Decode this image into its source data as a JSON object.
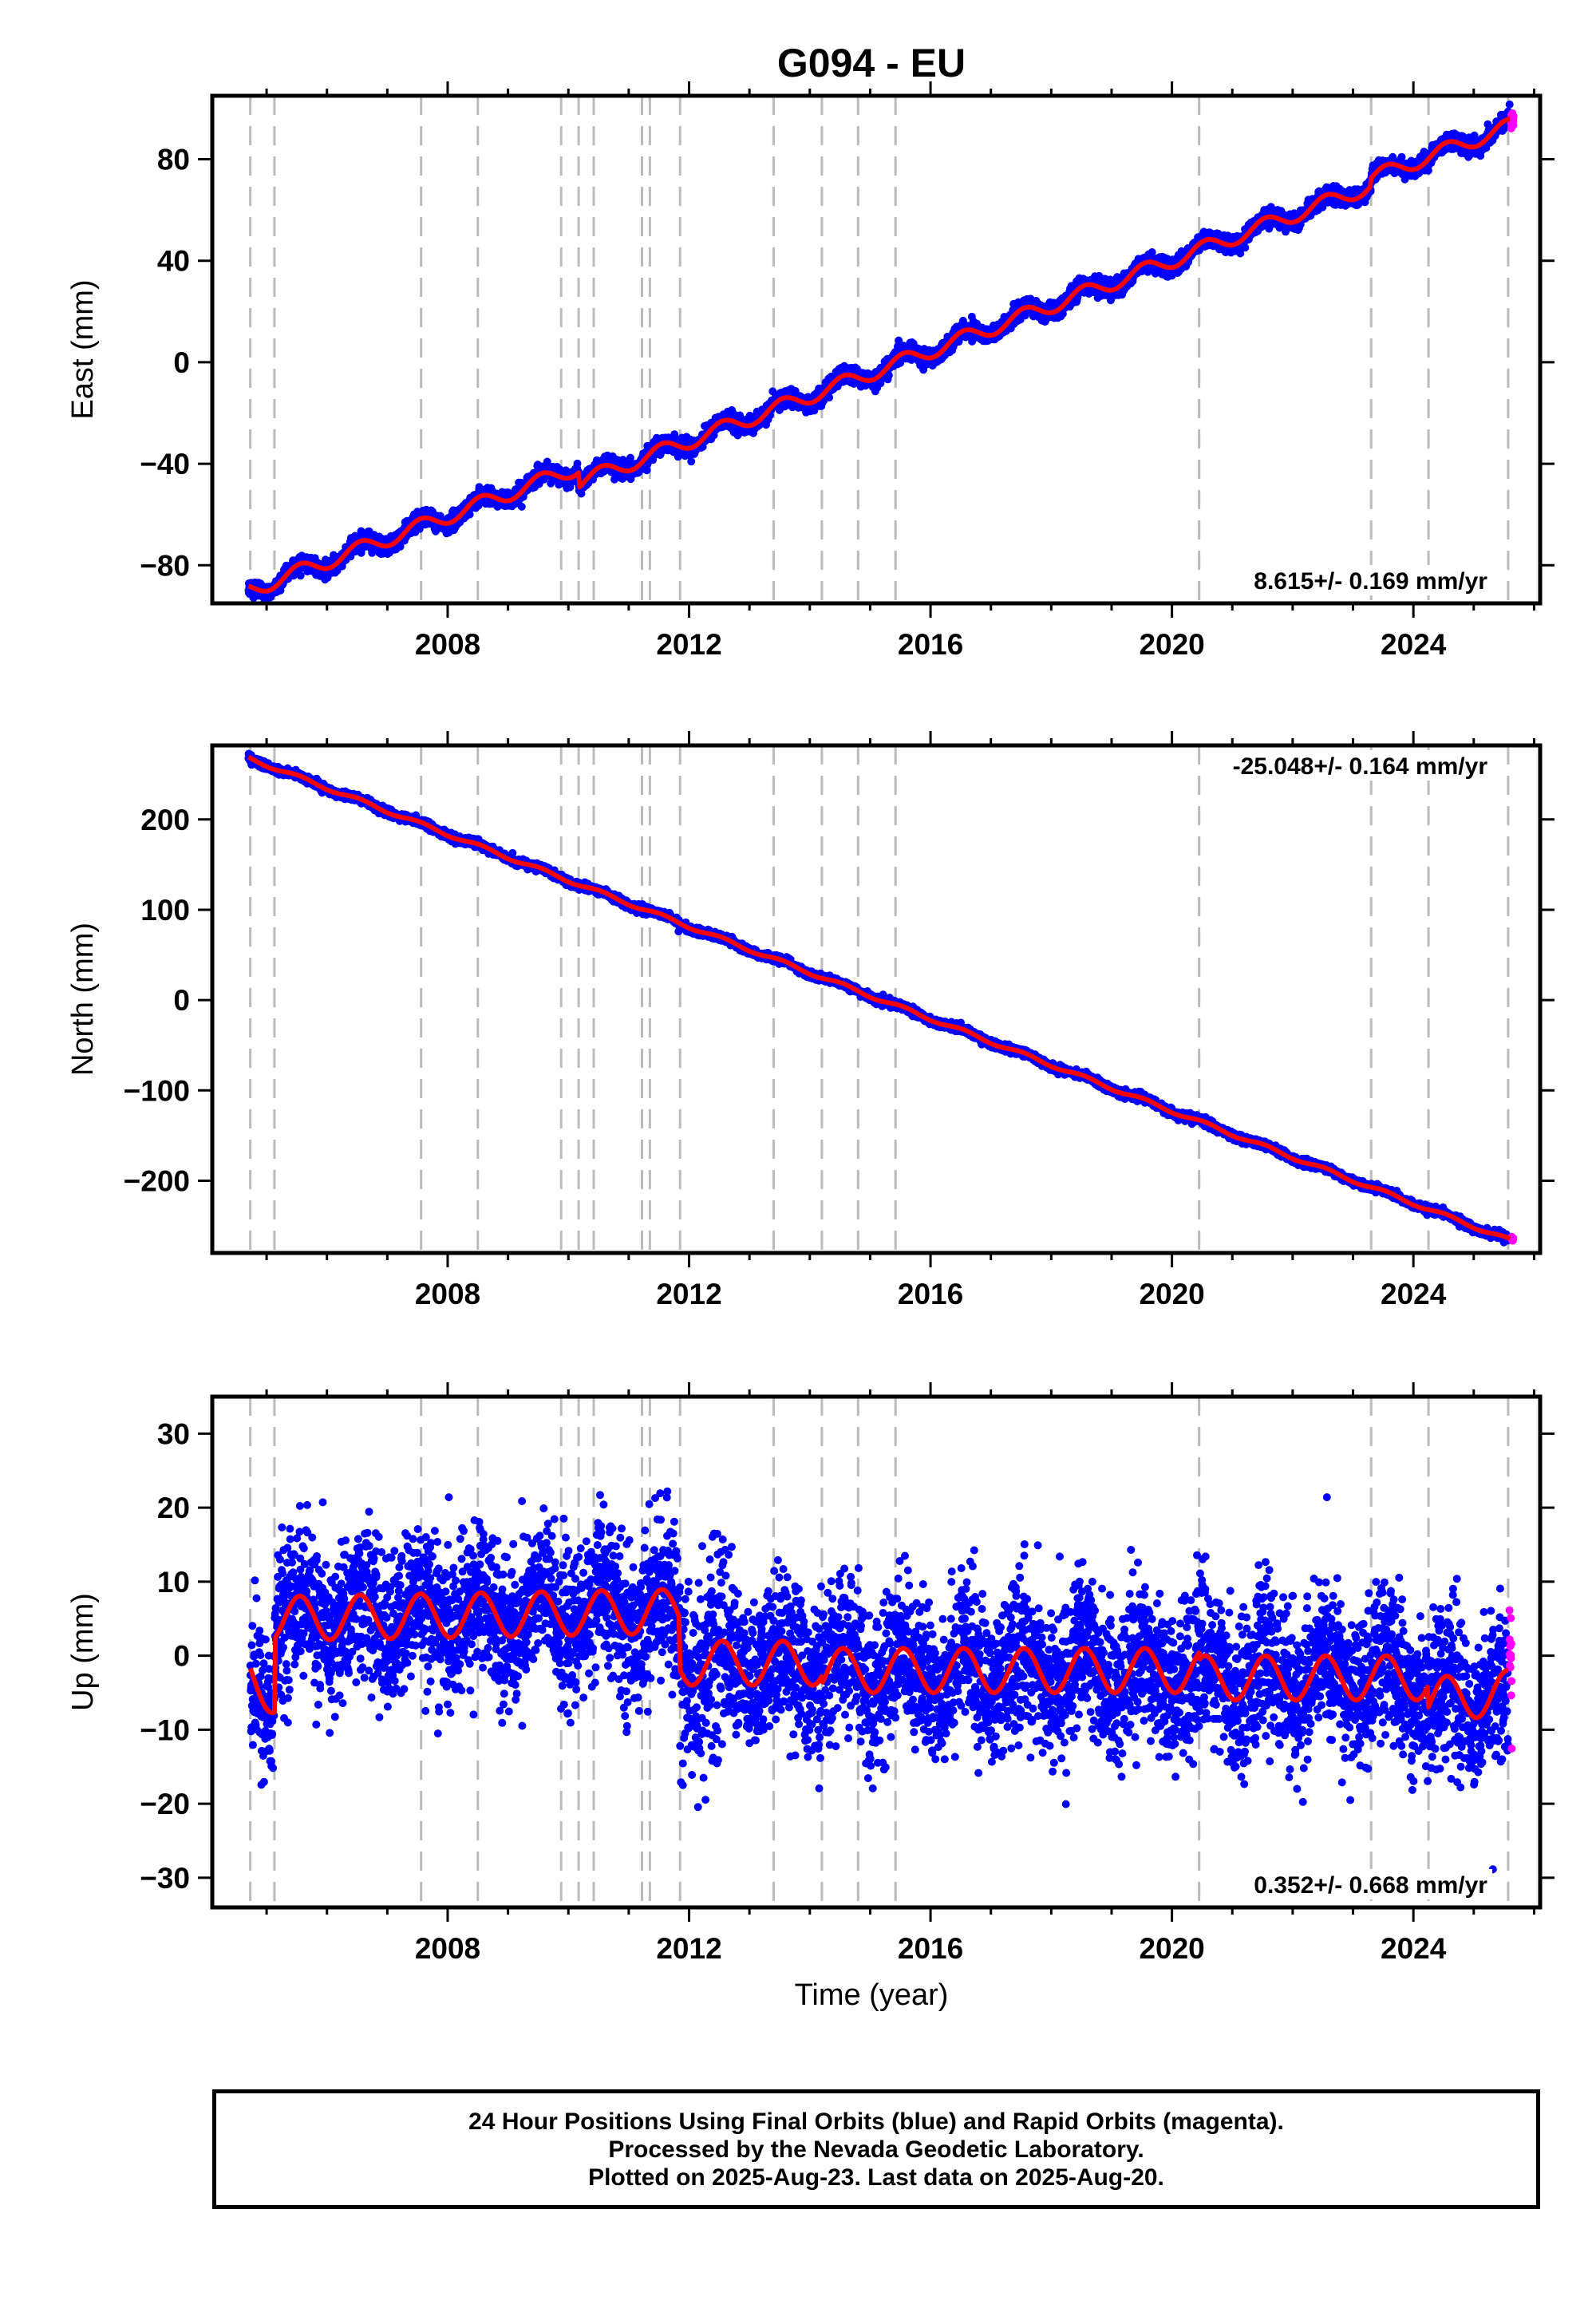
{
  "title": "G094 - EU",
  "xlabel": "Time (year)",
  "xticks": [
    2008,
    2012,
    2016,
    2020,
    2024
  ],
  "steps": [
    2004.73,
    2005.13,
    2007.56,
    2008.5,
    2009.88,
    2010.17,
    2010.42,
    2011.22,
    2011.35,
    2011.85,
    2013.4,
    2014.2,
    2014.8,
    2015.42,
    2020.45,
    2023.3,
    2024.25,
    2025.57
  ],
  "colors": {
    "final": "#0000ff",
    "rapid": "#ff00ff",
    "model": "#ff0000",
    "steps": "#bbbbbb"
  },
  "footer": [
    "24 Hour Positions Using Final Orbits (blue) and Rapid Orbits (magenta).",
    "Processed by the Nevada Geodetic Laboratory.",
    "Plotted on 2025-Aug-23. Last data on 2025-Aug-20."
  ],
  "chart_data": [
    {
      "type": "scatter",
      "name": "East",
      "ylabel": "East (mm)",
      "xlim": [
        2004.1,
        2026.1
      ],
      "ylim": [
        -95,
        105
      ],
      "yticks": [
        -80,
        -40,
        0,
        40,
        80
      ],
      "rate_label": "8.615+/- 0.169 mm/yr",
      "rate_position": "bottom-right",
      "trend": {
        "start": [
          2004.7,
          -90
        ],
        "end": [
          2025.6,
          96
        ]
      },
      "seasonal_amplitude": 3,
      "scatter_sd": 1.6,
      "offsets": [
        {
          "year": 2010.17,
          "value": -6
        },
        {
          "year": 2023.3,
          "value": 3
        }
      ],
      "x": [
        2004.7,
        2006,
        2008,
        2010,
        2012,
        2014,
        2016,
        2018,
        2020,
        2022,
        2024,
        2025.6
      ],
      "y": [
        -90,
        -81,
        -61,
        -45,
        -31,
        -10,
        8,
        25,
        43,
        62,
        87,
        96
      ]
    },
    {
      "type": "scatter",
      "name": "North",
      "ylabel": "North (mm)",
      "xlim": [
        2004.1,
        2026.1
      ],
      "ylim": [
        -280,
        282
      ],
      "yticks": [
        -200,
        -100,
        0,
        100,
        200
      ],
      "rate_label": "-25.048+/- 0.164 mm/yr",
      "rate_position": "top-right",
      "trend": {
        "start": [
          2004.7,
          268
        ],
        "end": [
          2025.6,
          -266
        ]
      },
      "seasonal_amplitude": 2,
      "scatter_sd": 2,
      "offsets": [],
      "x": [
        2004.7,
        2006,
        2008,
        2010,
        2012,
        2014,
        2016,
        2018,
        2020,
        2022,
        2024,
        2025.6
      ],
      "y": [
        268,
        230,
        175,
        125,
        80,
        25,
        -15,
        -65,
        -115,
        -170,
        -225,
        -266
      ]
    },
    {
      "type": "scatter",
      "name": "Up",
      "ylabel": "Up (mm)",
      "xlim": [
        2004.1,
        2026.1
      ],
      "ylim": [
        -34,
        35
      ],
      "yticks": [
        -30,
        -20,
        -10,
        0,
        10,
        20,
        30
      ],
      "rate_label": "0.352+/- 0.668 mm/yr",
      "rate_position": "bottom-right",
      "model_x": [
        2004.73,
        2005.13,
        2005.13,
        2011.85,
        2011.85,
        2014.2,
        2014.2,
        2020.45,
        2020.45,
        2024.25,
        2024.25,
        2025.57
      ],
      "model_y": [
        -3,
        -5,
        5,
        6,
        -1,
        -1,
        -2,
        -2,
        -3,
        -3,
        -6,
        -5
      ],
      "seasonal_amplitude": 3,
      "scatter_sd": 5,
      "x": [
        2004.73,
        2005.13,
        2006,
        2008,
        2010,
        2011.85,
        2012,
        2014,
        2016,
        2018,
        2020,
        2022,
        2024,
        2025.57
      ],
      "y": [
        -3,
        -5,
        6,
        7,
        5,
        6,
        -1,
        -1,
        -2,
        -2,
        -3,
        -3,
        -5,
        -5
      ]
    }
  ]
}
